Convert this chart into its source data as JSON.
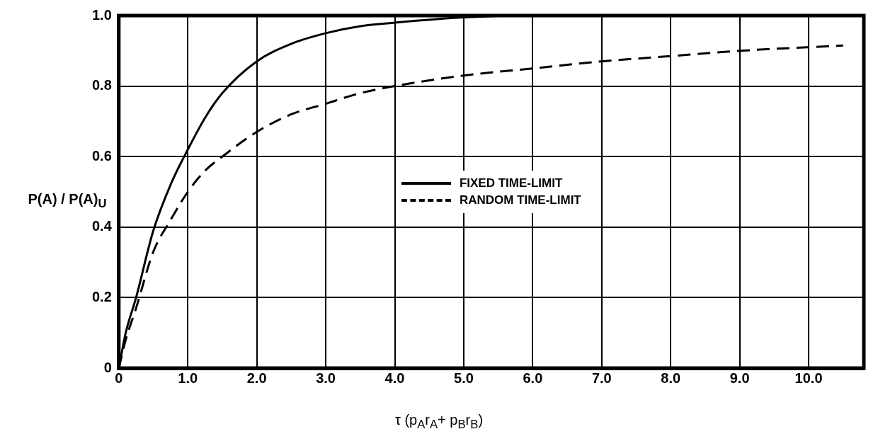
{
  "chart_data": {
    "type": "line",
    "xlabel": "τ (p$_{A}$r$_{A}$+ p$_{B}$r$_{B}$)",
    "ylabel": "P(A) / P(A)$_{U}$",
    "xlim": [
      0,
      10.8
    ],
    "xticks": [
      0,
      {
        "value": 1,
        "label": "1.0"
      },
      {
        "value": 2,
        "label": "2.0"
      },
      {
        "value": 3,
        "label": "3.0"
      },
      {
        "value": 4,
        "label": "4.0"
      },
      {
        "value": 5,
        "label": "5.0"
      },
      {
        "value": 6,
        "label": "6.0"
      },
      {
        "value": 7,
        "label": "7.0"
      },
      {
        "value": 8,
        "label": "8.0"
      },
      {
        "value": 9,
        "label": "9.0"
      },
      {
        "value": 10,
        "label": "10.0"
      }
    ],
    "ylim": [
      0,
      1
    ],
    "yticks": [
      0,
      0.2,
      0.4,
      0.6,
      0.8,
      {
        "value": 1,
        "label": "1.0"
      }
    ],
    "grid": true,
    "legend": "center",
    "marker": "none",
    "series": [
      {
        "name": "FIXED TIME-LIMIT",
        "color": "#000000",
        "line_style": "solid",
        "x": [
          0,
          0.1,
          0.25,
          0.5,
          0.75,
          1.0,
          1.25,
          1.5,
          2.0,
          2.5,
          3.0,
          3.5,
          4.0,
          5.0,
          6.0,
          7.0,
          10.5
        ],
        "values": [
          0,
          0.1,
          0.2,
          0.39,
          0.52,
          0.62,
          0.71,
          0.78,
          0.87,
          0.92,
          0.95,
          0.97,
          0.98,
          0.995,
          1.0,
          1.0,
          1.0
        ]
      },
      {
        "name": "RANDOM TIME-LIMIT",
        "color": "#000000",
        "line_style": "dashed",
        "x": [
          0,
          0.1,
          0.25,
          0.5,
          0.75,
          1.0,
          1.25,
          1.5,
          2.0,
          2.5,
          3.0,
          3.5,
          4.0,
          5.0,
          6.0,
          7.0,
          8.0,
          9.0,
          10.5
        ],
        "values": [
          0,
          0.08,
          0.17,
          0.33,
          0.42,
          0.5,
          0.56,
          0.6,
          0.67,
          0.72,
          0.75,
          0.78,
          0.8,
          0.83,
          0.85,
          0.87,
          0.885,
          0.9,
          0.915
        ]
      }
    ]
  }
}
